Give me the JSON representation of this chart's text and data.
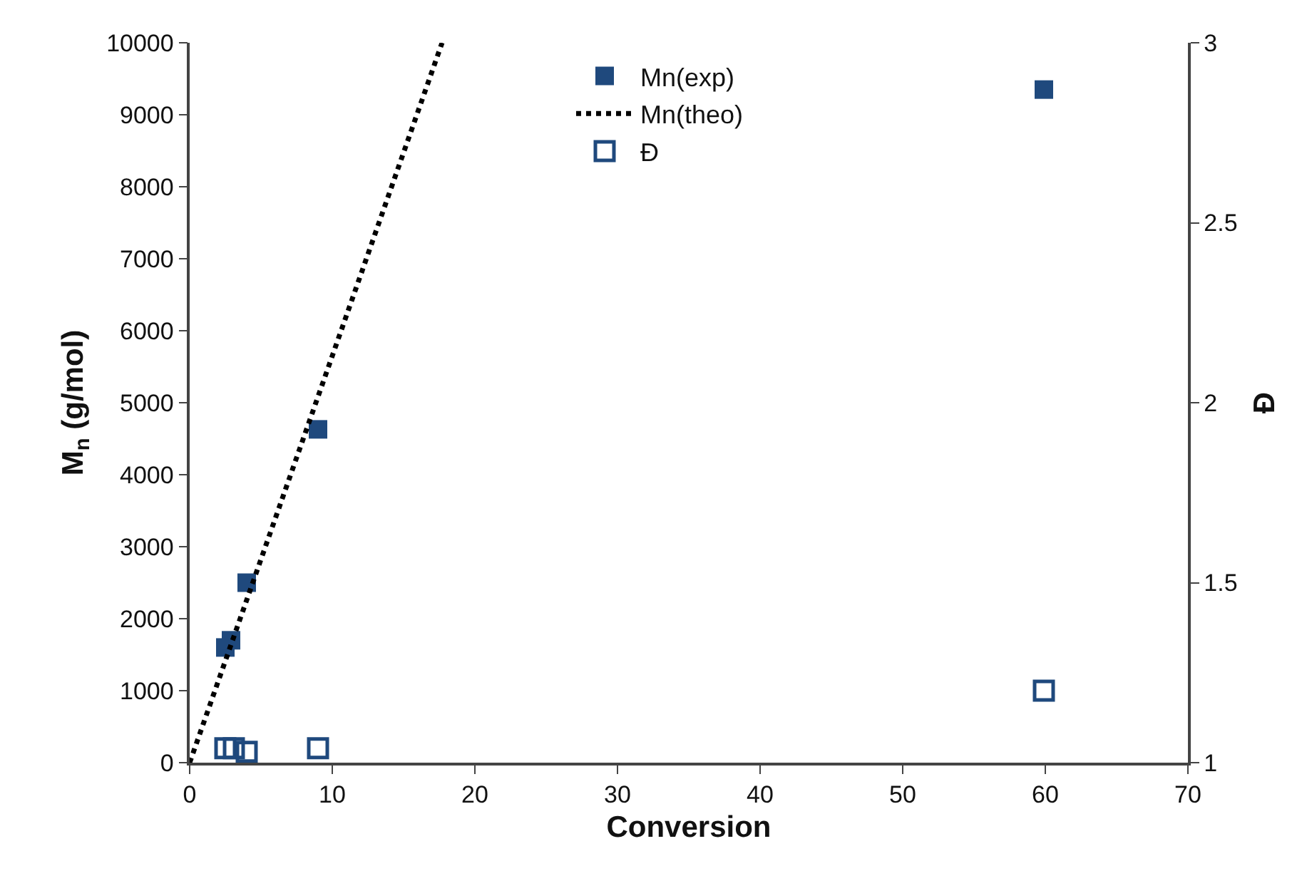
{
  "chart_data": {
    "type": "scatter",
    "xlabel": "Conversion",
    "ylabel": "M$_{n}$ (g/mol)",
    "y2label": "Đ",
    "xlim": [
      0,
      70
    ],
    "xticks": [
      0,
      10,
      20,
      30,
      40,
      50,
      60,
      70
    ],
    "ylim": [
      0,
      10000
    ],
    "yticks": [
      0,
      1000,
      2000,
      3000,
      4000,
      5000,
      6000,
      7000,
      8000,
      9000,
      10000
    ],
    "y2lim": [
      1,
      3
    ],
    "y2ticks": [
      1,
      1.5,
      2,
      2.5,
      3
    ],
    "grid": false,
    "legend": "top",
    "series": [
      {
        "name": "Mn(exp)",
        "marker": "square",
        "color": "#1f497d",
        "x": [
          2.5,
          2.9,
          4.0,
          9.0,
          59.9
        ],
        "values": [
          1600,
          1700,
          2500,
          4630,
          9350
        ]
      },
      {
        "name": "Mn(theo)",
        "type": "line",
        "marker": "none",
        "line_style": "dotted",
        "color": "#000000",
        "x": [
          0,
          17.7
        ],
        "values": [
          0,
          10000
        ]
      },
      {
        "name": "Đ",
        "marker": "square",
        "axis": "y2",
        "color": "#1f497d",
        "x": [
          2.5,
          3.1,
          4.0,
          9.0,
          59.9
        ],
        "values": [
          1.04,
          1.04,
          1.03,
          1.04,
          1.2
        ]
      }
    ]
  }
}
